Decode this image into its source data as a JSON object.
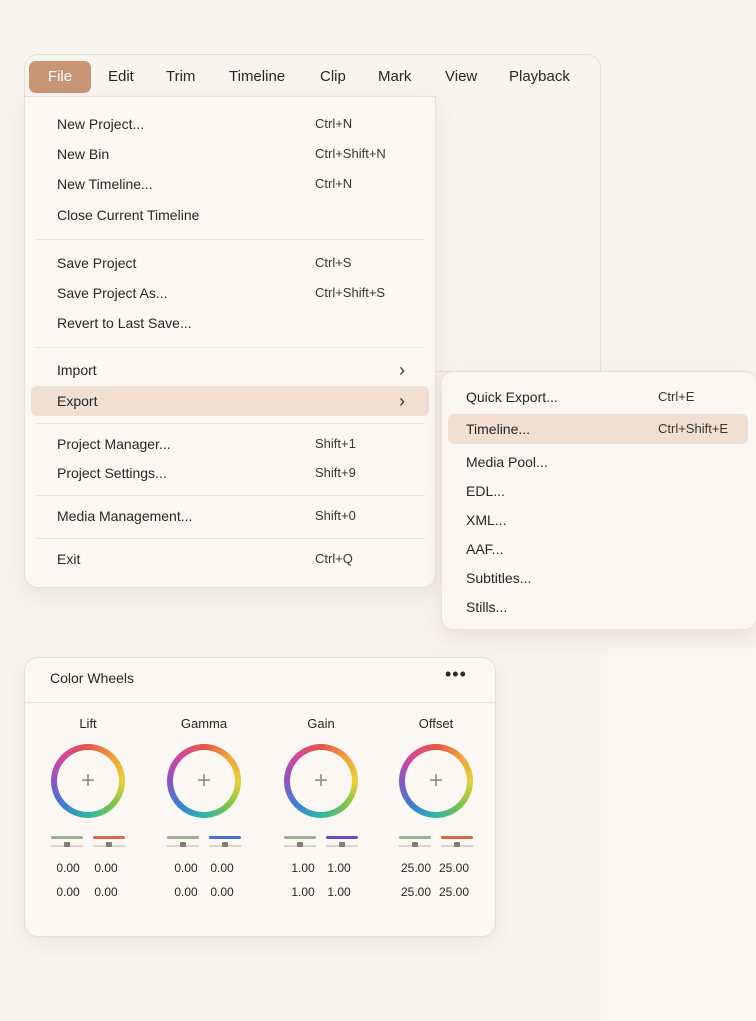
{
  "menubar": {
    "items": [
      "File",
      "Edit",
      "Trim",
      "Timeline",
      "Clip",
      "Mark",
      "View",
      "Playback"
    ],
    "active": "File",
    "active_color": "#c89674"
  },
  "file_menu": {
    "items": [
      {
        "label": "New Project...",
        "shortcut": "Ctrl+N"
      },
      {
        "label": "New Bin",
        "shortcut": "Ctrl+Shift+N"
      },
      {
        "label": "New Timeline...",
        "shortcut": "Ctrl+N"
      },
      {
        "label": "Close Current Timeline",
        "shortcut": ""
      },
      {
        "label": "Save Project",
        "shortcut": "Ctrl+S"
      },
      {
        "label": "Save Project As...",
        "shortcut": "Ctrl+Shift+S"
      },
      {
        "label": "Revert to Last Save...",
        "shortcut": ""
      },
      {
        "label": "Import",
        "submenu": true,
        "icon": "chevron-right-icon"
      },
      {
        "label": "Export",
        "submenu": true,
        "icon": "chevron-right-icon",
        "highlighted": true
      },
      {
        "label": "Project Manager...",
        "shortcut": "Shift+1"
      },
      {
        "label": "Project Settings...",
        "shortcut": "Shift+9"
      },
      {
        "label": "Media Management...",
        "shortcut": "Shift+0"
      },
      {
        "label": "Exit",
        "shortcut": "Ctrl+Q"
      }
    ]
  },
  "export_submenu": {
    "items": [
      {
        "label": "Quick Export...",
        "shortcut": "Ctrl+E"
      },
      {
        "label": "Timeline...",
        "shortcut": "Ctrl+Shift+E",
        "highlighted": true
      },
      {
        "label": "Media Pool...",
        "shortcut": ""
      },
      {
        "label": "EDL...",
        "shortcut": ""
      },
      {
        "label": "XML...",
        "shortcut": ""
      },
      {
        "label": "AAF...",
        "shortcut": ""
      },
      {
        "label": "Subtitles...",
        "shortcut": ""
      },
      {
        "label": "Stills...",
        "shortcut": ""
      }
    ],
    "highlight_color": "#f1dfd2"
  },
  "color_wheels": {
    "title": "Color Wheels",
    "more_icon": "more-horizontal-icon",
    "more_label": "•••",
    "wheels": [
      {
        "label": "Lift",
        "plus": "+",
        "row1": [
          "0.00",
          "0.00"
        ],
        "row2": [
          "0.00",
          "0.00"
        ],
        "colors": [
          "#9cb08a",
          "#e0664a"
        ]
      },
      {
        "label": "Gamma",
        "plus": "+",
        "row1": [
          "0.00",
          "0.00"
        ],
        "row2": [
          "0.00",
          "0.00"
        ],
        "colors": [
          "#9cb08a",
          "#4a6fd0"
        ]
      },
      {
        "label": "Gain",
        "plus": "+",
        "row1": [
          "1.00",
          "1.00"
        ],
        "row2": [
          "1.00",
          "1.00"
        ],
        "colors": [
          "#9cb08a",
          "#6a4cc8"
        ]
      },
      {
        "label": "Offset",
        "plus": "+",
        "row1": [
          "25.00",
          "25.00"
        ],
        "row2": [
          "25.00",
          "25.00"
        ],
        "colors": [
          "#9cb08a",
          "#e0664a"
        ]
      }
    ]
  }
}
